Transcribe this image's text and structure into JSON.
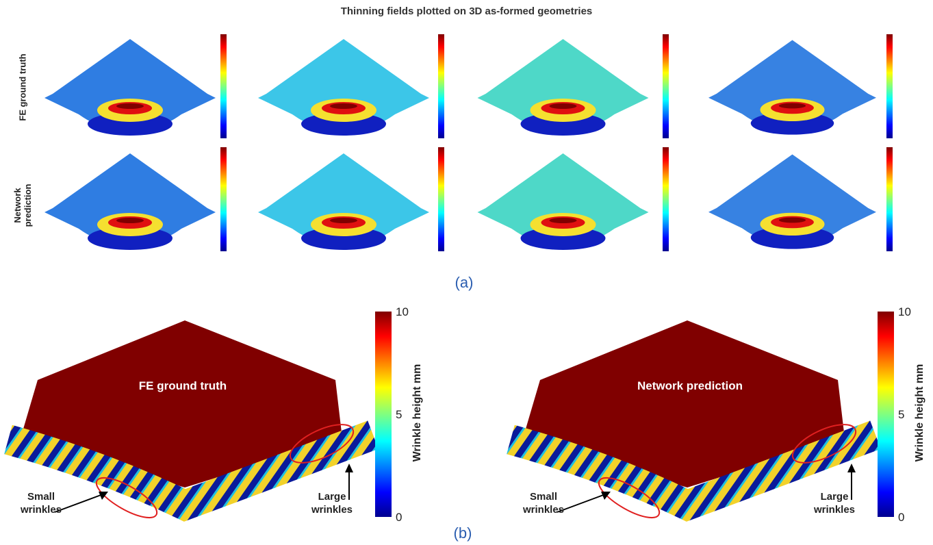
{
  "title": "Thinning fields plotted on 3D as-formed geometries",
  "part_a": {
    "label": "(a)",
    "rows": [
      "FE ground truth",
      "Network prediction"
    ]
  },
  "part_b": {
    "label": "(b)",
    "panels": [
      {
        "title": "FE ground truth",
        "colorbar": {
          "label": "Wrinkle height mm",
          "ticks": [
            "10",
            "5",
            "0"
          ]
        },
        "annotations": [
          "Small wrinkles",
          "Large wrinkles"
        ]
      },
      {
        "title": "Network prediction",
        "colorbar": {
          "label": "Wrinkle height mm",
          "ticks": [
            "10",
            "5",
            "0"
          ]
        },
        "annotations": [
          "Small wrinkles",
          "Large wrinkles"
        ]
      }
    ]
  }
}
